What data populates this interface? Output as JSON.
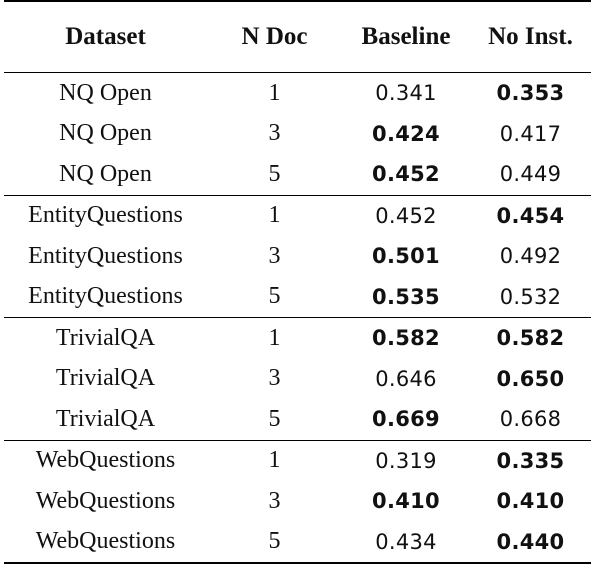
{
  "table": {
    "headers": {
      "dataset": "Dataset",
      "n_doc": "N Doc",
      "baseline": "Baseline",
      "no_inst": "No Inst."
    },
    "rows": [
      {
        "dataset": "NQ Open",
        "n_doc": "1",
        "baseline": "0.341",
        "no_inst": "0.353",
        "bold": "no_inst"
      },
      {
        "dataset": "NQ Open",
        "n_doc": "3",
        "baseline": "0.424",
        "no_inst": "0.417",
        "bold": "baseline"
      },
      {
        "dataset": "NQ Open",
        "n_doc": "5",
        "baseline": "0.452",
        "no_inst": "0.449",
        "bold": "baseline"
      },
      {
        "dataset": "EntityQuestions",
        "n_doc": "1",
        "baseline": "0.452",
        "no_inst": "0.454",
        "bold": "no_inst"
      },
      {
        "dataset": "EntityQuestions",
        "n_doc": "3",
        "baseline": "0.501",
        "no_inst": "0.492",
        "bold": "baseline"
      },
      {
        "dataset": "EntityQuestions",
        "n_doc": "5",
        "baseline": "0.535",
        "no_inst": "0.532",
        "bold": "baseline"
      },
      {
        "dataset": "TrivialQA",
        "n_doc": "1",
        "baseline": "0.582",
        "no_inst": "0.582",
        "bold": "both"
      },
      {
        "dataset": "TrivialQA",
        "n_doc": "3",
        "baseline": "0.646",
        "no_inst": "0.650",
        "bold": "no_inst"
      },
      {
        "dataset": "TrivialQA",
        "n_doc": "5",
        "baseline": "0.669",
        "no_inst": "0.668",
        "bold": "baseline"
      },
      {
        "dataset": "WebQuestions",
        "n_doc": "1",
        "baseline": "0.319",
        "no_inst": "0.335",
        "bold": "no_inst"
      },
      {
        "dataset": "WebQuestions",
        "n_doc": "3",
        "baseline": "0.410",
        "no_inst": "0.410",
        "bold": "both"
      },
      {
        "dataset": "WebQuestions",
        "n_doc": "5",
        "baseline": "0.434",
        "no_inst": "0.440",
        "bold": "no_inst"
      }
    ]
  }
}
